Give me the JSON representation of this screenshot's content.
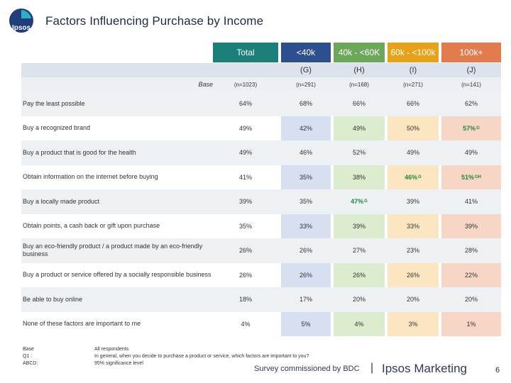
{
  "title": "Factors Influencing Purchase by Income",
  "logo_text": "Ipsos",
  "columns": [
    {
      "label": "Total",
      "letter": "",
      "base": "(n=1023)"
    },
    {
      "label": "<40k",
      "letter": "(G)",
      "base": "(n=291)"
    },
    {
      "label": "40k - <60K",
      "letter": "(H)",
      "base": "(n=168)"
    },
    {
      "label": "60k - <100k",
      "letter": "(I)",
      "base": "(n=271)"
    },
    {
      "label": "100k+",
      "letter": "(J)",
      "base": "(n=141)"
    }
  ],
  "base_label": "Base",
  "rows": [
    {
      "label": "Pay the least possible",
      "values": [
        {
          "v": "64%"
        },
        {
          "v": "68%"
        },
        {
          "v": "66%"
        },
        {
          "v": "66%"
        },
        {
          "v": "62%"
        }
      ]
    },
    {
      "label": "Buy a recognized brand",
      "values": [
        {
          "v": "49%"
        },
        {
          "v": "42%"
        },
        {
          "v": "49%"
        },
        {
          "v": "50%"
        },
        {
          "v": "57%",
          "sig": "G"
        }
      ]
    },
    {
      "label": "Buy a product that is good for the health",
      "values": [
        {
          "v": "49%"
        },
        {
          "v": "46%"
        },
        {
          "v": "52%"
        },
        {
          "v": "49%"
        },
        {
          "v": "49%"
        }
      ]
    },
    {
      "label": "Obtain information on the internet before buying",
      "values": [
        {
          "v": "41%"
        },
        {
          "v": "35%"
        },
        {
          "v": "38%"
        },
        {
          "v": "46%",
          "sig": "G"
        },
        {
          "v": "51%",
          "sig": "GH"
        }
      ]
    },
    {
      "label": "Buy a locally made product",
      "values": [
        {
          "v": "39%"
        },
        {
          "v": "35%"
        },
        {
          "v": "47%",
          "sig": "G"
        },
        {
          "v": "39%"
        },
        {
          "v": "41%"
        }
      ]
    },
    {
      "label": "Obtain points, a cash back or gift upon purchase",
      "values": [
        {
          "v": "35%"
        },
        {
          "v": "33%"
        },
        {
          "v": "39%"
        },
        {
          "v": "33%"
        },
        {
          "v": "39%"
        }
      ]
    },
    {
      "label": "Buy an eco-friendly product / a product made by an eco-friendly business",
      "values": [
        {
          "v": "26%"
        },
        {
          "v": "26%"
        },
        {
          "v": "27%"
        },
        {
          "v": "23%"
        },
        {
          "v": "28%"
        }
      ]
    },
    {
      "label": "Buy a product or service offered by a socially responsible business",
      "values": [
        {
          "v": "26%"
        },
        {
          "v": "26%"
        },
        {
          "v": "26%"
        },
        {
          "v": "26%"
        },
        {
          "v": "22%"
        }
      ]
    },
    {
      "label": "Be able to buy online",
      "values": [
        {
          "v": "18%"
        },
        {
          "v": "17%"
        },
        {
          "v": "20%"
        },
        {
          "v": "20%"
        },
        {
          "v": "20%"
        }
      ]
    },
    {
      "label": "None of these factors are important to me",
      "values": [
        {
          "v": "4%"
        },
        {
          "v": "5%"
        },
        {
          "v": "4%"
        },
        {
          "v": "3%"
        },
        {
          "v": "1%"
        }
      ]
    }
  ],
  "footnotes": {
    "base_key": "Base",
    "q1_key": "Q1 :",
    "abcd_key": "ABCD:",
    "base_text": "All respondents",
    "q1_text": "In general, when you decide to purchase a product or service, which factors are important to you?",
    "abcd_text": "95% significance level"
  },
  "survey_text": "Survey commissioned by BDC",
  "separator": "|",
  "brand_text": "Ipsos Marketing",
  "page_number": "6",
  "colors": {
    "total": "#1b7f7a",
    "col1": "#2e4f8e",
    "col2": "#6da85a",
    "col3": "#e8a21a",
    "col4": "#e27b4e",
    "col1_bg": "#d6e0f0",
    "col2_bg": "#dceccf",
    "col3_bg": "#fbe6c1",
    "col4_bg": "#f7d6c6",
    "sig": "#1a8a3a"
  }
}
